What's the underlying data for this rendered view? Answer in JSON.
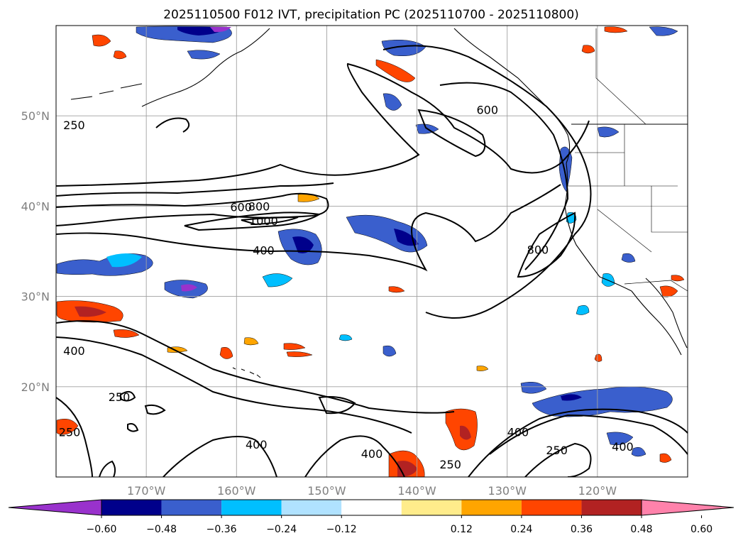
{
  "title": "2025110500 F012 IVT, precipitation PC (2025110700 - 2025110800)",
  "map": {
    "lon_range": [
      -180,
      -110
    ],
    "lat_range": [
      10,
      60
    ],
    "lat_ticks": [
      {
        "value": 20,
        "label": "20°N"
      },
      {
        "value": 30,
        "label": "30°N"
      },
      {
        "value": 40,
        "label": "40°N"
      },
      {
        "value": 50,
        "label": "50°N"
      }
    ],
    "lon_ticks": [
      {
        "value": -170,
        "label": "170°W"
      },
      {
        "value": -160,
        "label": "160°W"
      },
      {
        "value": -150,
        "label": "150°W"
      },
      {
        "value": -140,
        "label": "140°W"
      },
      {
        "value": -130,
        "label": "130°W"
      },
      {
        "value": -120,
        "label": "120°W"
      }
    ],
    "ivt_contour_labels": [
      {
        "text": "250",
        "lon": -178,
        "lat": 49.0
      },
      {
        "text": "600",
        "lon": -159.5,
        "lat": 39.9
      },
      {
        "text": "800",
        "lon": -157.5,
        "lat": 40.0
      },
      {
        "text": "1000",
        "lon": -157,
        "lat": 38.4
      },
      {
        "text": "400",
        "lon": -157,
        "lat": 35.1
      },
      {
        "text": "600",
        "lon": -132.2,
        "lat": 50.7
      },
      {
        "text": "800",
        "lon": -126.6,
        "lat": 35.2
      },
      {
        "text": "400",
        "lon": -178,
        "lat": 24.0
      },
      {
        "text": "250",
        "lon": -173,
        "lat": 18.9
      },
      {
        "text": "250",
        "lon": -178.5,
        "lat": 15.0
      },
      {
        "text": "400",
        "lon": -157.8,
        "lat": 13.6
      },
      {
        "text": "400",
        "lon": -145,
        "lat": 12.6
      },
      {
        "text": "250",
        "lon": -136.3,
        "lat": 11.4
      },
      {
        "text": "400",
        "lon": -128.8,
        "lat": 15.0
      },
      {
        "text": "250",
        "lon": -124.5,
        "lat": 13.0
      },
      {
        "text": "400",
        "lon": -117.2,
        "lat": 13.4
      }
    ]
  },
  "colorbar": {
    "ticks": [
      "−0.60",
      "−0.48",
      "−0.36",
      "−0.24",
      "−0.12",
      "0.12",
      "0.24",
      "0.36",
      "0.48",
      "0.60"
    ],
    "colors": [
      "#9932cc",
      "#00008b",
      "#3a5fcd",
      "#00bfff",
      "#b0e2ff",
      "#ffffff",
      "#ffec8b",
      "#ffa500",
      "#ff4500",
      "#b22222",
      "#ff82ab"
    ]
  }
}
